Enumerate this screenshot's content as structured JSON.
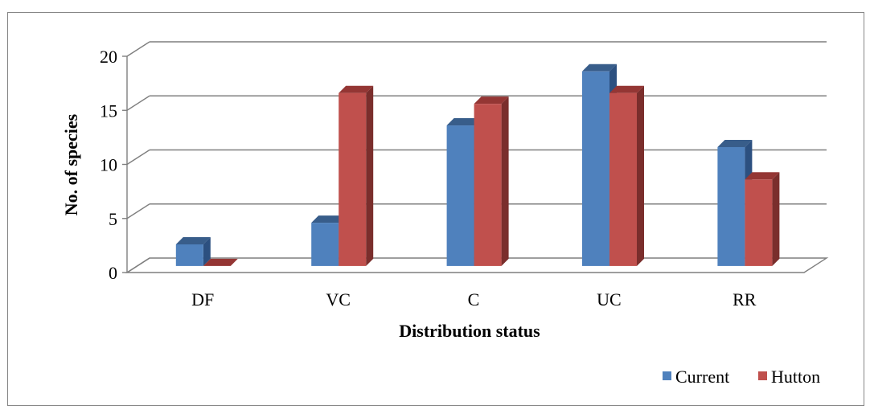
{
  "chart_data": {
    "type": "bar",
    "title": "",
    "xlabel": "Distribution status",
    "ylabel": "No. of species",
    "categories": [
      "DF",
      "VC",
      "C",
      "UC",
      "RR"
    ],
    "series": [
      {
        "name": "Current",
        "values": [
          2,
          4,
          13,
          18,
          11
        ],
        "color": "#4f81bd",
        "side_color": "#2c5080",
        "top_color": "#385d8a"
      },
      {
        "name": "Hutton",
        "values": [
          0,
          16,
          15,
          16,
          8
        ],
        "color": "#c0504d",
        "side_color": "#7a2e2c",
        "top_color": "#943634"
      }
    ],
    "ylim": [
      0,
      20
    ],
    "yticks": [
      0,
      5,
      10,
      15,
      20
    ],
    "grid": true,
    "legend_position": "bottom-right",
    "style": "3d-clustered-column"
  }
}
